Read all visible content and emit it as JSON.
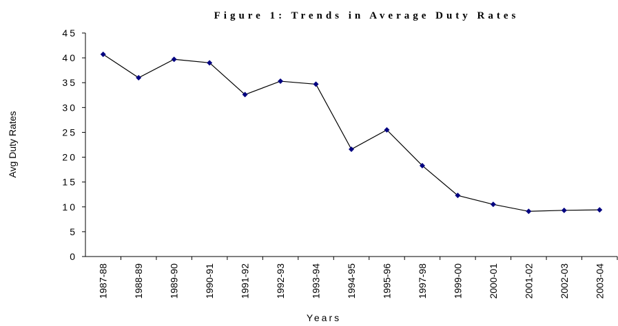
{
  "chart_data": {
    "type": "line",
    "title": "Figure 1: Trends in Average Duty Rates",
    "x_label": "Years",
    "y_label": "Avg Duty Rates",
    "categories": [
      "1987-88",
      "1988-89",
      "1989-90",
      "1990-91",
      "1991-92",
      "1992-93",
      "1993-94",
      "1994-95",
      "1995-96",
      "1997-98",
      "1999-00",
      "2000-01",
      "2001-02",
      "2002-03",
      "2003-04"
    ],
    "series": [
      {
        "name": "Avg Duty Rates",
        "color": "#000080",
        "values": [
          40.7,
          36.0,
          39.7,
          39.0,
          32.6,
          35.3,
          34.7,
          21.6,
          25.5,
          18.3,
          12.3,
          10.5,
          9.1,
          9.3,
          9.4
        ]
      }
    ],
    "ylim": [
      0,
      45
    ],
    "yticks": [
      0,
      5,
      10,
      15,
      20,
      25,
      30,
      35,
      40,
      45
    ],
    "grid": false
  }
}
